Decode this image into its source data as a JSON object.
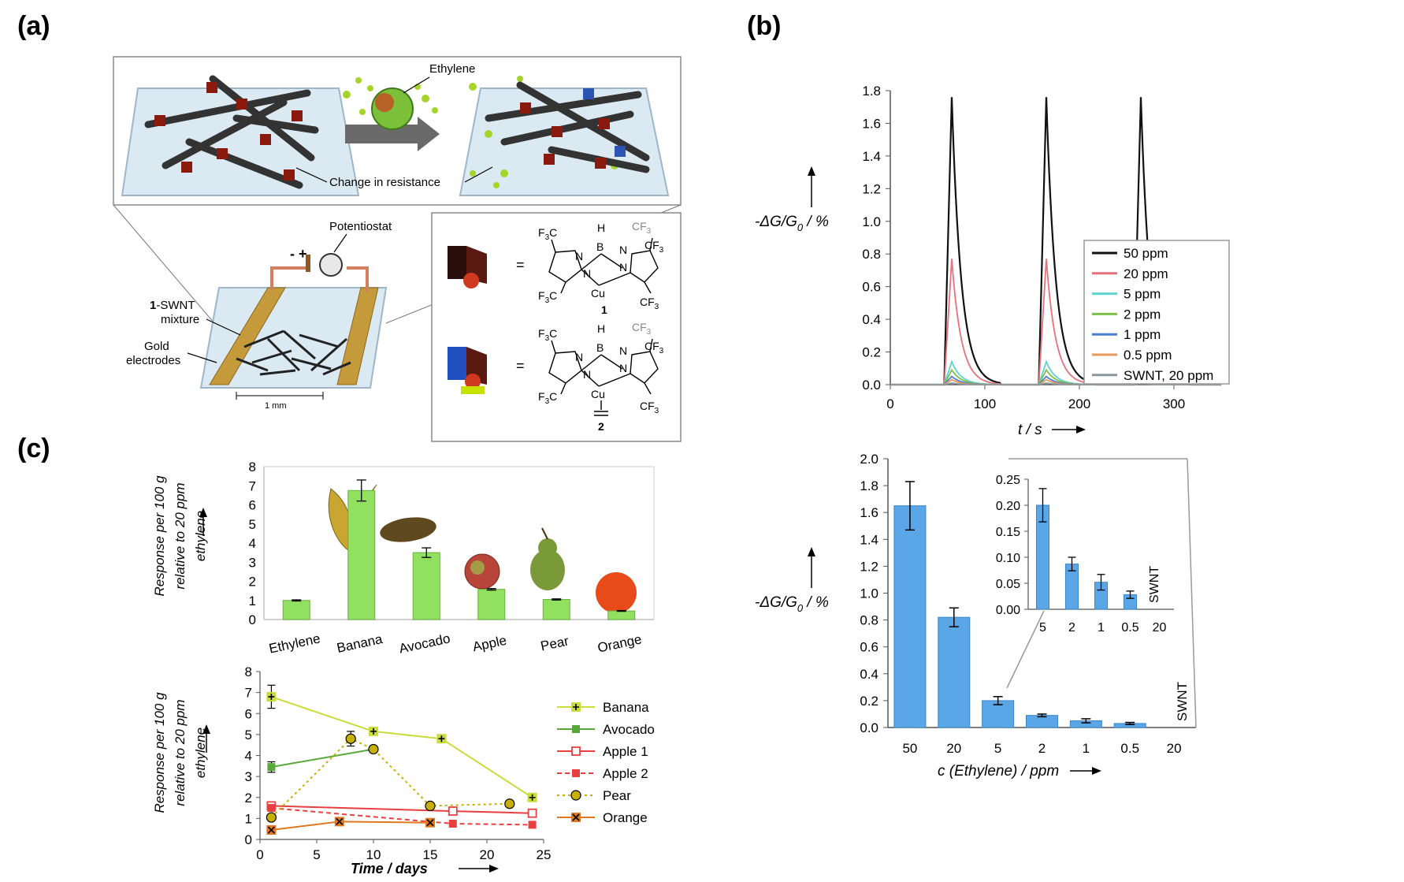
{
  "panel_labels": {
    "a": "(a)",
    "b": "(b)",
    "c": "(c)"
  },
  "panel_a": {
    "ethylene_label": "Ethylene",
    "change_label": "Change in resistance",
    "potentiostat_label": "Potentiostat",
    "mixture_prefix": "1",
    "mixture_label_line1": "-SWNT",
    "mixture_label_line2": "mixture",
    "electrodes_line1": "Gold",
    "electrodes_line2": "electrodes",
    "scale_label": "1 mm",
    "polarity": "- +",
    "equals": "=",
    "compound1_number": "1",
    "compound2_number": "2",
    "mol_CF3": "CF",
    "mol_F3C": "F",
    "mol_sub3": "3",
    "mol_C": "C",
    "mol_H": "H",
    "mol_B": "B",
    "mol_N": "N",
    "mol_Cu": "Cu"
  },
  "chart_data": [
    {
      "id": "b-top",
      "type": "line",
      "xlabel": "t / s",
      "ylabel": "-ΔG/G0 / %",
      "xlim": [
        0,
        350
      ],
      "ylim": [
        0,
        1.8
      ],
      "x_ticks": [
        "0",
        "100",
        "200",
        "300"
      ],
      "y_ticks": [
        "0.0",
        "0.2",
        "0.4",
        "0.6",
        "0.8",
        "1.0",
        "1.2",
        "1.4",
        "1.6",
        "1.8"
      ],
      "legend_position": "right",
      "pulse_starts": [
        57,
        157,
        257
      ],
      "series": [
        {
          "name": "50 ppm",
          "color": "#111111",
          "peak": 1.76
        },
        {
          "name": "20 ppm",
          "color": "#e8707c",
          "peak": 0.77
        },
        {
          "name": "5 ppm",
          "color": "#5fd3d0",
          "peak": 0.14
        },
        {
          "name": "2 ppm",
          "color": "#7cc04a",
          "peak": 0.09
        },
        {
          "name": "1 ppm",
          "color": "#4a7fd0",
          "peak": 0.05
        },
        {
          "name": "0.5 ppm",
          "color": "#e8985a",
          "peak": 0.03
        },
        {
          "name": "SWNT, 20 ppm",
          "color": "#8a96a0",
          "peak": 0.01
        }
      ]
    },
    {
      "id": "b-bottom",
      "type": "bar",
      "xlabel": "c (Ethylene) / ppm",
      "ylabel": "-ΔG/G0 / %",
      "ylim": [
        0,
        2.0
      ],
      "y_ticks": [
        "0.0",
        "0.2",
        "0.4",
        "0.6",
        "0.8",
        "1.0",
        "1.2",
        "1.4",
        "1.6",
        "1.8",
        "2.0"
      ],
      "categories": [
        "50",
        "20",
        "5",
        "2",
        "1",
        "0.5",
        "20"
      ],
      "values": [
        1.65,
        0.82,
        0.2,
        0.09,
        0.05,
        0.03,
        0
      ],
      "errors": [
        0.18,
        0.07,
        0.03,
        0.01,
        0.015,
        0.008,
        0
      ],
      "swnt_label": "SWNT",
      "color": "#5aa6e6"
    },
    {
      "id": "b-inset",
      "type": "bar",
      "ylim": [
        0,
        0.25
      ],
      "y_ticks": [
        "0.00",
        "0.05",
        "0.10",
        "0.15",
        "0.20",
        "0.25"
      ],
      "categories": [
        "5",
        "2",
        "1",
        "0.5",
        "20"
      ],
      "values": [
        0.2,
        0.087,
        0.052,
        0.028,
        0
      ],
      "errors": [
        0.032,
        0.013,
        0.015,
        0.007,
        0
      ],
      "swnt_label": "SWNT",
      "color": "#5aa6e6"
    },
    {
      "id": "c-top",
      "type": "bar",
      "ylabel_lines": [
        "Response per 100 g",
        "relative to 20 ppm",
        "ethylene"
      ],
      "ylim": [
        0,
        8
      ],
      "y_ticks": [
        "0",
        "1",
        "2",
        "3",
        "4",
        "5",
        "6",
        "7",
        "8"
      ],
      "categories": [
        "Ethylene",
        "Banana",
        "Avocado",
        "Apple",
        "Pear",
        "Orange"
      ],
      "values": [
        1.0,
        6.75,
        3.5,
        1.58,
        1.05,
        0.45
      ],
      "errors": [
        0.03,
        0.55,
        0.25,
        0.04,
        0.03,
        0.02
      ],
      "color": "#92e060"
    },
    {
      "id": "c-bottom",
      "type": "line",
      "xlabel": "Time / days",
      "ylabel_lines": [
        "Response per 100 g",
        "relative to 20 ppm",
        "ethylene"
      ],
      "xlim": [
        0,
        25
      ],
      "ylim": [
        0,
        8
      ],
      "x_ticks": [
        "0",
        "5",
        "10",
        "15",
        "20",
        "25"
      ],
      "y_ticks": [
        "0",
        "1",
        "2",
        "3",
        "4",
        "5",
        "6",
        "7",
        "8"
      ],
      "legend_position": "right",
      "series": [
        {
          "name": "Banana",
          "color": "#c8dc3a",
          "marker": "plus",
          "dash": "",
          "x": [
            1,
            10,
            16,
            24
          ],
          "y": [
            6.8,
            5.15,
            4.8,
            2.0
          ],
          "err": [
            0.55,
            0.15,
            0.1,
            0.05
          ]
        },
        {
          "name": "Avocado",
          "color": "#5aa83c",
          "marker": "square",
          "dash": "",
          "x": [
            1,
            10
          ],
          "y": [
            3.45,
            4.3
          ],
          "err": [
            0.25,
            0.05
          ]
        },
        {
          "name": "Apple 1",
          "color": "#e84040",
          "marker": "open-square",
          "dash": "",
          "x": [
            1,
            17,
            24
          ],
          "y": [
            1.6,
            1.35,
            1.25
          ],
          "err": [
            0,
            0,
            0
          ]
        },
        {
          "name": "Apple 2",
          "color": "#e84040",
          "marker": "square",
          "dash": "6,4",
          "x": [
            1,
            17,
            24
          ],
          "y": [
            1.5,
            0.75,
            0.7
          ],
          "err": [
            0,
            0,
            0
          ]
        },
        {
          "name": "Pear",
          "color": "#c8b000",
          "marker": "circle",
          "dash": "3,4",
          "x": [
            1,
            8,
            10,
            15,
            22
          ],
          "y": [
            1.05,
            4.8,
            4.3,
            1.6,
            1.7
          ],
          "err": [
            0,
            0.35,
            0,
            0,
            0
          ]
        },
        {
          "name": "Orange",
          "color": "#e07820",
          "marker": "x",
          "dash": "",
          "x": [
            1,
            7,
            15
          ],
          "y": [
            0.45,
            0.85,
            0.8
          ],
          "err": [
            0,
            0,
            0
          ]
        }
      ]
    }
  ]
}
